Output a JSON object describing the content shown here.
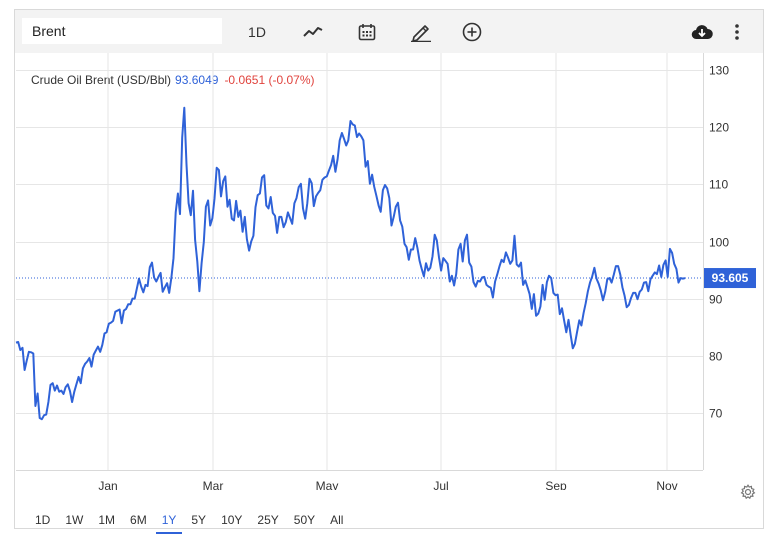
{
  "toolbar": {
    "search_value": "Brent",
    "interval_label": "1D",
    "icons": [
      "line-chart-icon",
      "calendar-icon",
      "pencil-icon",
      "add-circle-icon",
      "cloud-download-icon",
      "more-vertical-icon"
    ]
  },
  "header": {
    "name": "Crude Oil Brent (USD/Bbl)",
    "price": "93.6049",
    "change": "-0.0651 (-0.07%)"
  },
  "current_price_label": "93.605",
  "ranges": {
    "items": [
      "1D",
      "1W",
      "1M",
      "6M",
      "1Y",
      "5Y",
      "10Y",
      "25Y",
      "50Y",
      "All"
    ],
    "active": "1Y"
  },
  "colors": {
    "line": "#2f62d8",
    "negative": "#e0433d",
    "grid": "#e6e6e6",
    "toolbar_bg": "#f3f3f3"
  },
  "chart_data": {
    "type": "line",
    "title": "Crude Oil Brent (USD/Bbl)",
    "x_tick_labels": [
      "Jan",
      "Mar",
      "May",
      "Jul",
      "Sep",
      "Nov"
    ],
    "y_ticks": [
      70,
      80,
      90,
      100,
      110,
      120,
      130
    ],
    "ylim": [
      60,
      133
    ],
    "grid": "horizontal and vertical",
    "axis_side": "right",
    "last_value": 93.605,
    "series": [
      {
        "values": [
          82.3,
          82.4,
          81.0,
          81.4,
          77.5,
          79.2,
          80.7,
          80.6,
          80.4,
          71.2,
          73.4,
          69.1,
          68.9,
          69.6,
          69.7,
          71.9,
          74.9,
          75.2,
          73.9,
          74.8,
          73.7,
          73.9,
          73.3,
          74.5,
          75.0,
          73.8,
          71.9,
          73.7,
          75.0,
          76.3,
          75.2,
          77.8,
          78.6,
          79.0,
          79.6,
          78.1,
          80.2,
          80.9,
          81.6,
          80.7,
          81.9,
          83.9,
          84.1,
          85.6,
          85.8,
          86.1,
          87.7,
          87.9,
          88.1,
          85.7,
          87.9,
          88.2,
          89.0,
          89.0,
          90.0,
          90.0,
          91.8,
          93.5,
          92.1,
          91.1,
          92.4,
          92.2,
          95.5,
          96.3,
          93.7,
          93.0,
          93.8,
          94.5,
          91.2,
          92.0,
          92.7,
          91.0,
          93.7,
          97.1,
          105.1,
          108.4,
          104.8,
          118.2,
          123.4,
          113.5,
          106.7,
          104.6,
          108.9,
          100.3,
          96.5,
          91.3,
          96.2,
          99.9,
          106.1,
          107.2,
          102.8,
          104.1,
          107.5,
          112.9,
          112.5,
          107.9,
          110.6,
          111.4,
          106.1,
          107.3,
          104.0,
          103.7,
          107.1,
          104.3,
          105.4,
          101.7,
          104.3,
          100.4,
          98.4,
          100.0,
          101.0,
          106.0,
          108.1,
          108.4,
          111.2,
          111.6,
          106.3,
          105.8,
          107.8,
          105.0,
          104.5,
          101.5,
          104.3,
          104.3,
          102.5,
          103.4,
          105.1,
          104.1,
          103.1,
          106.7,
          107.6,
          109.5,
          110.1,
          105.8,
          104.0,
          106.7,
          111.0,
          110.2,
          106.2,
          107.9,
          108.5,
          109.0,
          110.8,
          111.2,
          111.4,
          112.4,
          113.4,
          115.0,
          112.2,
          114.4,
          117.7,
          119.0,
          118.0,
          116.8,
          117.7,
          121.1,
          120.5,
          120.3,
          118.3,
          118.9,
          118.4,
          117.7,
          113.1,
          114.1,
          110.1,
          111.7,
          109.6,
          108.0,
          106.3,
          105.2,
          109.0,
          109.9,
          109.3,
          107.6,
          102.8,
          104.3,
          106.1,
          106.8,
          103.7,
          102.6,
          99.6,
          99.0,
          96.8,
          98.6,
          98.6,
          100.6,
          98.9,
          96.6,
          95.2,
          93.9,
          96.2,
          94.9,
          95.4,
          97.4,
          101.2,
          100.2,
          97.2,
          94.9,
          97.1,
          96.6,
          96.1,
          93.0,
          94.0,
          92.3,
          94.3,
          98.6,
          99.6,
          96.5,
          100.2,
          101.2,
          96.3,
          95.6,
          92.9,
          92.1,
          93.1,
          93.0,
          93.7,
          93.8,
          92.4,
          92.1,
          91.9,
          90.2,
          93.0,
          94.2,
          95.6,
          96.8,
          96.4,
          98.1,
          97.2,
          96.1,
          96.7,
          101.0,
          96.0,
          95.6,
          96.3,
          92.4,
          93.2,
          92.0,
          90.8,
          88.2,
          90.8,
          87.0,
          87.4,
          88.6,
          92.4,
          89.8,
          92.9,
          94.0,
          93.6,
          91.0,
          90.6,
          90.7,
          87.3,
          88.3,
          86.2,
          84.1,
          86.3,
          83.7,
          81.3,
          82.1,
          84.2,
          86.2,
          85.3,
          87.5,
          89.2,
          91.3,
          92.8,
          93.9,
          95.4,
          93.5,
          92.6,
          91.4,
          89.7,
          91.2,
          93.4,
          93.6,
          92.8,
          94.2,
          95.7,
          95.7,
          94.2,
          92.0,
          90.5,
          88.5,
          88.9,
          90.1,
          91.0,
          91.0,
          89.9,
          91.2,
          91.6,
          92.8,
          92.9,
          91.3,
          93.4,
          94.0,
          94.6,
          94.3,
          95.8,
          93.8,
          95.9,
          96.7,
          93.8,
          98.7,
          98.0,
          96.1,
          95.2,
          92.8,
          93.6,
          93.5,
          93.6
        ]
      }
    ]
  }
}
